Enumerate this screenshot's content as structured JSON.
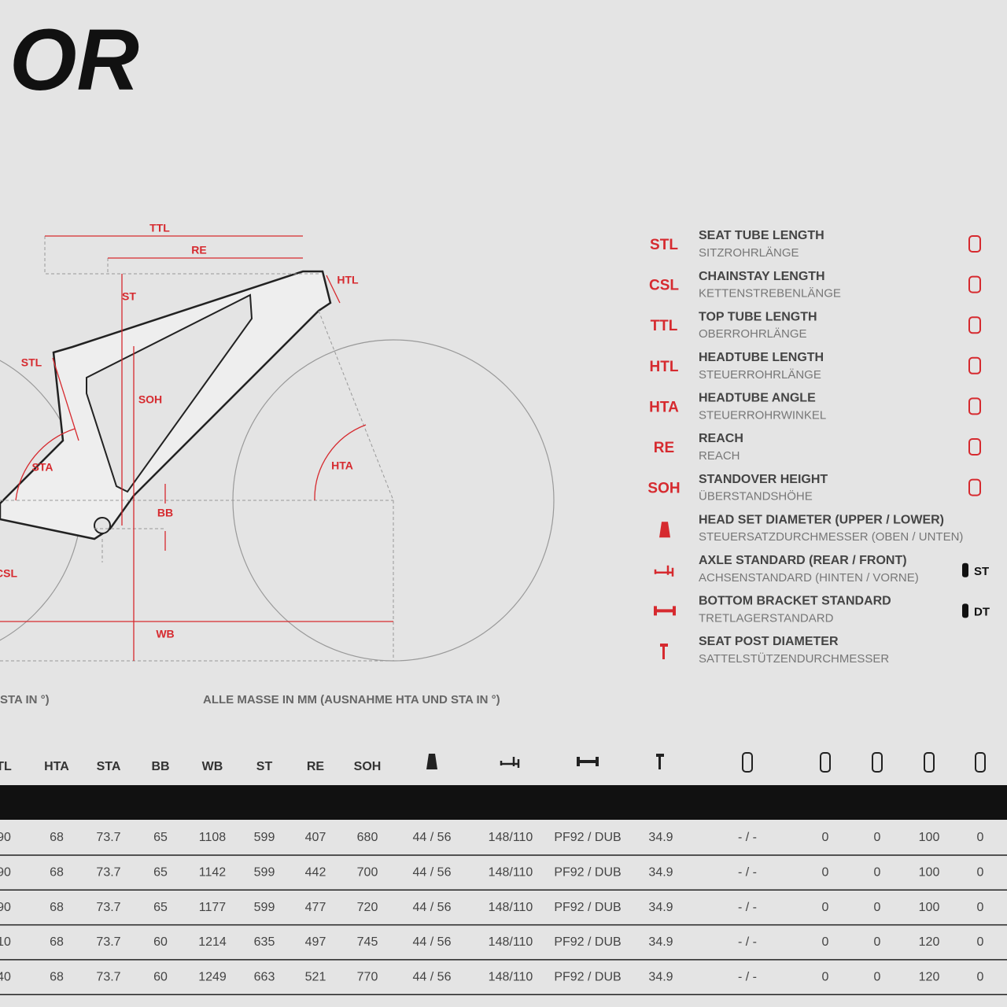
{
  "header": {
    "title": "OR"
  },
  "diagram": {
    "labels": {
      "ttl": "TTL",
      "re": "RE",
      "htl": "HTL",
      "st": "ST",
      "stl": "STL",
      "soh": "SOH",
      "sta": "STA",
      "hta": "HTA",
      "bb": "BB",
      "csl": "CSL",
      "wb": "WB"
    }
  },
  "legend": [
    {
      "code": "STL",
      "name": "SEAT TUBE LENGTH",
      "name_de": "SITZROHRLÄNGE"
    },
    {
      "code": "CSL",
      "name": "CHAINSTAY LENGTH",
      "name_de": "KETTENSTREBENLÄNGE"
    },
    {
      "code": "TTL",
      "name": "TOP TUBE LENGTH",
      "name_de": "OBERROHRLÄNGE"
    },
    {
      "code": "HTL",
      "name": "HEADTUBE LENGTH",
      "name_de": "STEUERROHRLÄNGE"
    },
    {
      "code": "HTA",
      "name": "HEADTUBE ANGLE",
      "name_de": "STEUERROHRWINKEL"
    },
    {
      "code": "RE",
      "name": "REACH",
      "name_de": "REACH"
    },
    {
      "code": "SOH",
      "name": "STANDOVER HEIGHT",
      "name_de": "ÜBERSTANDSHÖHE"
    },
    {
      "code": null,
      "name": "HEAD SET DIAMETER (UPPER / LOWER)",
      "name_de": "STEUERSATZDURCHMESSER (OBEN / UNTEN)"
    },
    {
      "code": null,
      "name": "AXLE STANDARD (REAR / FRONT)",
      "name_de": "ACHSENSTANDARD (HINTEN / VORNE)"
    },
    {
      "code": null,
      "name": "BOTTOM BRACKET STANDARD",
      "name_de": "TRETLAGERSTANDARD"
    },
    {
      "code": null,
      "name": "SEAT POST DIAMETER",
      "name_de": "SATTELSTÜTZENDURCHMESSER"
    }
  ],
  "legend_icon_labels": [
    "ST",
    "DT"
  ],
  "notes": [
    "STA IN °)",
    "ALLE MASSE IN MM (AUSNAHME HTA UND STA IN °)"
  ],
  "table": {
    "headers": [
      "TL",
      "HTA",
      "STA",
      "BB",
      "WB",
      "ST",
      "RE",
      "SOH",
      null,
      null,
      null,
      null,
      null,
      null,
      null,
      null,
      null
    ],
    "rows": [
      [
        "90",
        "68",
        "73.7",
        "65",
        "1108",
        "599",
        "407",
        "680",
        "44 / 56",
        "148/110",
        "PF92 / DUB",
        "34.9",
        "- / -",
        "0",
        "0",
        "100",
        "0"
      ],
      [
        "90",
        "68",
        "73.7",
        "65",
        "1142",
        "599",
        "442",
        "700",
        "44 / 56",
        "148/110",
        "PF92 / DUB",
        "34.9",
        "- / -",
        "0",
        "0",
        "100",
        "0"
      ],
      [
        "90",
        "68",
        "73.7",
        "65",
        "1177",
        "599",
        "477",
        "720",
        "44 / 56",
        "148/110",
        "PF92 / DUB",
        "34.9",
        "- / -",
        "0",
        "0",
        "100",
        "0"
      ],
      [
        "10",
        "68",
        "73.7",
        "60",
        "1214",
        "635",
        "497",
        "745",
        "44 / 56",
        "148/110",
        "PF92 / DUB",
        "34.9",
        "- / -",
        "0",
        "0",
        "120",
        "0"
      ],
      [
        "40",
        "68",
        "73.7",
        "60",
        "1249",
        "663",
        "521",
        "770",
        "44 / 56",
        "148/110",
        "PF92 / DUB",
        "34.9",
        "- / -",
        "0",
        "0",
        "120",
        "0"
      ]
    ]
  }
}
